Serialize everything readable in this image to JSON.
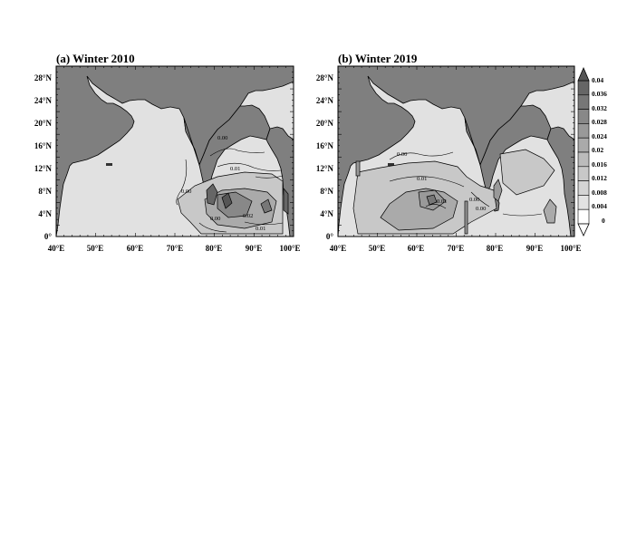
{
  "figure": {
    "panels": [
      {
        "title": "(a)  Winter 2010",
        "x_ticks": [
          "40°E",
          "50°E",
          "60°E",
          "70°E",
          "80°E",
          "90°E",
          "100°E"
        ],
        "y_ticks": [
          "0°",
          "4°N",
          "8°N",
          "12°N",
          "16°N",
          "20°N",
          "24°N",
          "28°N"
        ],
        "contour_labels": [
          "0.00",
          "0.01",
          "0.00",
          "0.02",
          "0.00",
          "0.01"
        ]
      },
      {
        "title": "(b)  Winter 2019",
        "x_ticks": [
          "40°E",
          "50°E",
          "60°E",
          "70°E",
          "80°E",
          "90°E",
          "100°E"
        ],
        "y_ticks": [
          "0°",
          "4°N",
          "8°N",
          "12°N",
          "16°N",
          "20°N",
          "24°N",
          "28°N"
        ],
        "contour_labels": [
          "0.00",
          "0.01",
          "0.01",
          "0.00",
          "0.00"
        ]
      }
    ],
    "colorbar": {
      "levels": [
        "0.04",
        "0.036",
        "0.032",
        "0.028",
        "0.024",
        "0.02",
        "0.016",
        "0.012",
        "0.008",
        "0.004",
        "0"
      ],
      "shades": [
        "#555555",
        "#666666",
        "#777777",
        "#888888",
        "#999999",
        "#aaaaaa",
        "#bbbbbb",
        "#c8c8c8",
        "#d4d4d4",
        "#e2e2e2",
        "#ffffff"
      ]
    },
    "colors": {
      "land": "#7f7f7f",
      "ocean": "#e1e1e1"
    }
  }
}
